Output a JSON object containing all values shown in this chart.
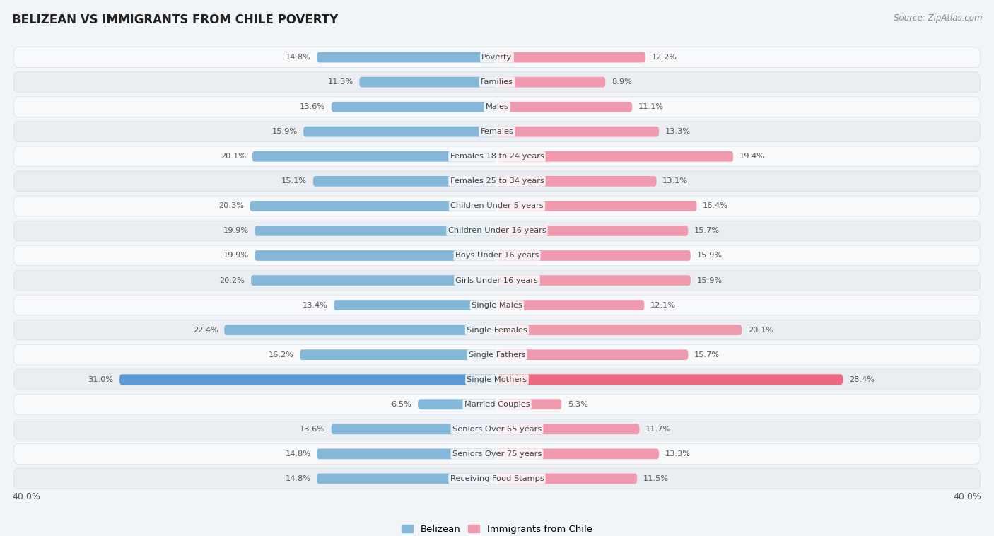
{
  "title": "BELIZEAN VS IMMIGRANTS FROM CHILE POVERTY",
  "source": "Source: ZipAtlas.com",
  "categories": [
    "Poverty",
    "Families",
    "Males",
    "Females",
    "Females 18 to 24 years",
    "Females 25 to 34 years",
    "Children Under 5 years",
    "Children Under 16 years",
    "Boys Under 16 years",
    "Girls Under 16 years",
    "Single Males",
    "Single Females",
    "Single Fathers",
    "Single Mothers",
    "Married Couples",
    "Seniors Over 65 years",
    "Seniors Over 75 years",
    "Receiving Food Stamps"
  ],
  "belizean": [
    14.8,
    11.3,
    13.6,
    15.9,
    20.1,
    15.1,
    20.3,
    19.9,
    19.9,
    20.2,
    13.4,
    22.4,
    16.2,
    31.0,
    6.5,
    13.6,
    14.8,
    14.8
  ],
  "immigrants": [
    12.2,
    8.9,
    11.1,
    13.3,
    19.4,
    13.1,
    16.4,
    15.7,
    15.9,
    15.9,
    12.1,
    20.1,
    15.7,
    28.4,
    5.3,
    11.7,
    13.3,
    11.5
  ],
  "belizean_color": "#85b8d8",
  "immigrants_color": "#f09ab0",
  "belizean_highlight": "#5b9bd5",
  "immigrants_highlight": "#f06880",
  "bg_color": "#f2f5f8",
  "row_bg_light": "#f8f9fb",
  "row_bg_dark": "#eaedf2",
  "row_border": "#d8dde6",
  "xlim": 40.0,
  "legend_belizean": "Belizean",
  "legend_immigrants": "Immigrants from Chile",
  "value_color": "#555555",
  "label_color": "#444444",
  "title_color": "#222222",
  "source_color": "#888888"
}
